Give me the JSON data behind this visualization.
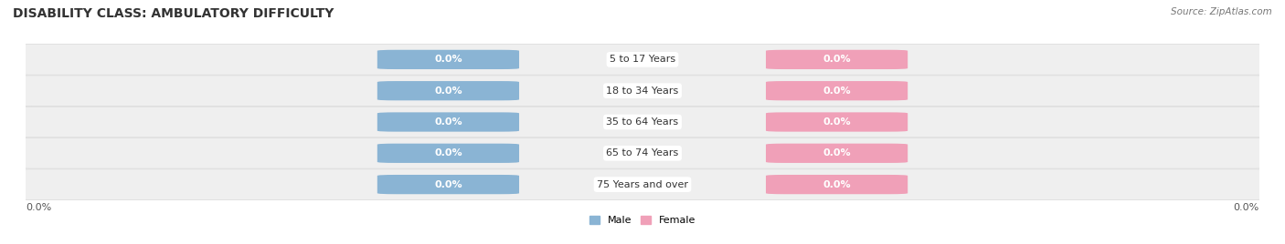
{
  "title": "DISABILITY CLASS: AMBULATORY DIFFICULTY",
  "source_text": "Source: ZipAtlas.com",
  "categories": [
    "5 to 17 Years",
    "18 to 34 Years",
    "35 to 64 Years",
    "65 to 74 Years",
    "75 Years and over"
  ],
  "male_values": [
    0.0,
    0.0,
    0.0,
    0.0,
    0.0
  ],
  "female_values": [
    0.0,
    0.0,
    0.0,
    0.0,
    0.0
  ],
  "male_color": "#8ab4d4",
  "female_color": "#f0a0b8",
  "row_bg_color": "#efefef",
  "row_line_color": "#d8d8d8",
  "title_fontsize": 10,
  "label_fontsize": 8,
  "tick_fontsize": 8,
  "pill_label": "0.0%",
  "axis_label_left": "0.0%",
  "axis_label_right": "0.0%",
  "background_color": "#ffffff"
}
